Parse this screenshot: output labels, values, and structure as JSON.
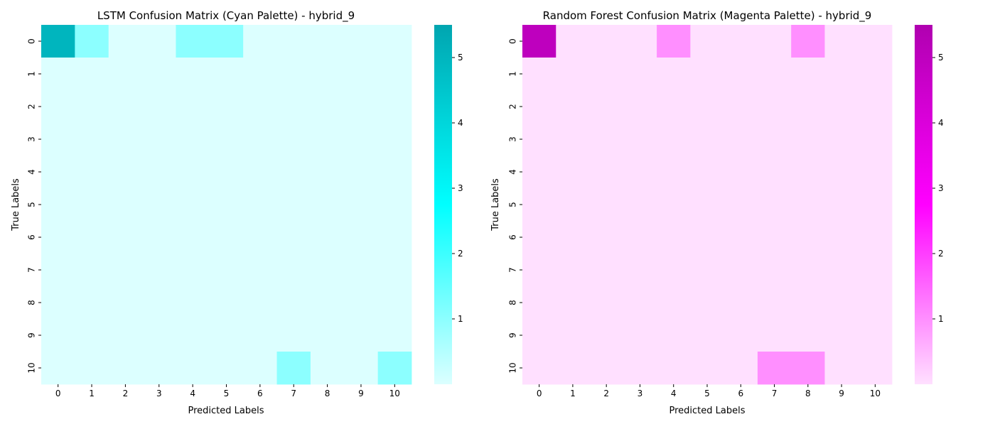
{
  "chart_data": [
    {
      "type": "heatmap",
      "title": "LSTM Confusion Matrix (Cyan Palette) - hybrid_9",
      "xlabel": "Predicted Labels",
      "ylabel": "True Labels",
      "x_categories": [
        "0",
        "1",
        "2",
        "3",
        "4",
        "5",
        "6",
        "7",
        "8",
        "9",
        "10"
      ],
      "y_categories": [
        "0",
        "1",
        "2",
        "3",
        "4",
        "5",
        "6",
        "7",
        "8",
        "9",
        "10"
      ],
      "values": [
        [
          5,
          1,
          0,
          0,
          1,
          1,
          0,
          0,
          0,
          0,
          0
        ],
        [
          0,
          0,
          0,
          0,
          0,
          0,
          0,
          0,
          0,
          0,
          0
        ],
        [
          0,
          0,
          0,
          0,
          0,
          0,
          0,
          0,
          0,
          0,
          0
        ],
        [
          0,
          0,
          0,
          0,
          0,
          0,
          0,
          0,
          0,
          0,
          0
        ],
        [
          0,
          0,
          0,
          0,
          0,
          0,
          0,
          0,
          0,
          0,
          0
        ],
        [
          0,
          0,
          0,
          0,
          0,
          0,
          0,
          0,
          0,
          0,
          0
        ],
        [
          0,
          0,
          0,
          0,
          0,
          0,
          0,
          0,
          0,
          0,
          0
        ],
        [
          0,
          0,
          0,
          0,
          0,
          0,
          0,
          0,
          0,
          0,
          0
        ],
        [
          0,
          0,
          0,
          0,
          0,
          0,
          0,
          0,
          0,
          0,
          0
        ],
        [
          0,
          0,
          0,
          0,
          0,
          0,
          0,
          0,
          0,
          0,
          0
        ],
        [
          0,
          0,
          0,
          0,
          0,
          0,
          0,
          1,
          0,
          0,
          1
        ]
      ],
      "colorbar_range": [
        0,
        5.5
      ],
      "colorbar_ticks": [
        1,
        2,
        3,
        4,
        5
      ],
      "colormap": [
        "#dcffff",
        "#00ffff",
        "#00a5b0"
      ]
    },
    {
      "type": "heatmap",
      "title": "Random Forest Confusion Matrix (Magenta Palette) - hybrid_9",
      "xlabel": "Predicted Labels",
      "ylabel": "True Labels",
      "x_categories": [
        "0",
        "1",
        "2",
        "3",
        "4",
        "5",
        "6",
        "7",
        "8",
        "9",
        "10"
      ],
      "y_categories": [
        "0",
        "1",
        "2",
        "3",
        "4",
        "5",
        "6",
        "7",
        "8",
        "9",
        "10"
      ],
      "values": [
        [
          5,
          0,
          0,
          0,
          1,
          0,
          0,
          0,
          1,
          0,
          0
        ],
        [
          0,
          0,
          0,
          0,
          0,
          0,
          0,
          0,
          0,
          0,
          0
        ],
        [
          0,
          0,
          0,
          0,
          0,
          0,
          0,
          0,
          0,
          0,
          0
        ],
        [
          0,
          0,
          0,
          0,
          0,
          0,
          0,
          0,
          0,
          0,
          0
        ],
        [
          0,
          0,
          0,
          0,
          0,
          0,
          0,
          0,
          0,
          0,
          0
        ],
        [
          0,
          0,
          0,
          0,
          0,
          0,
          0,
          0,
          0,
          0,
          0
        ],
        [
          0,
          0,
          0,
          0,
          0,
          0,
          0,
          0,
          0,
          0,
          0
        ],
        [
          0,
          0,
          0,
          0,
          0,
          0,
          0,
          0,
          0,
          0,
          0
        ],
        [
          0,
          0,
          0,
          0,
          0,
          0,
          0,
          0,
          0,
          0,
          0
        ],
        [
          0,
          0,
          0,
          0,
          0,
          0,
          0,
          0,
          0,
          0,
          0
        ],
        [
          0,
          0,
          0,
          0,
          0,
          0,
          0,
          1,
          1,
          0,
          0
        ]
      ],
      "colorbar_range": [
        0,
        5.5
      ],
      "colorbar_ticks": [
        1,
        2,
        3,
        4,
        5
      ],
      "colormap": [
        "#ffe0ff",
        "#ff00ff",
        "#b000b0"
      ]
    }
  ]
}
